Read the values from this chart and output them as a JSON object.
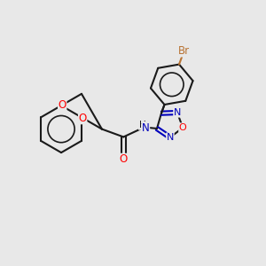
{
  "bg_color": "#e8e8e8",
  "bond_color": "#1a1a1a",
  "o_color": "#ff0000",
  "n_color": "#0000bb",
  "br_color": "#b87333",
  "lw": 1.5,
  "figsize": [
    3.0,
    3.0
  ],
  "dpi": 100,
  "xlim": [
    0,
    10
  ],
  "ylim": [
    0,
    10
  ]
}
